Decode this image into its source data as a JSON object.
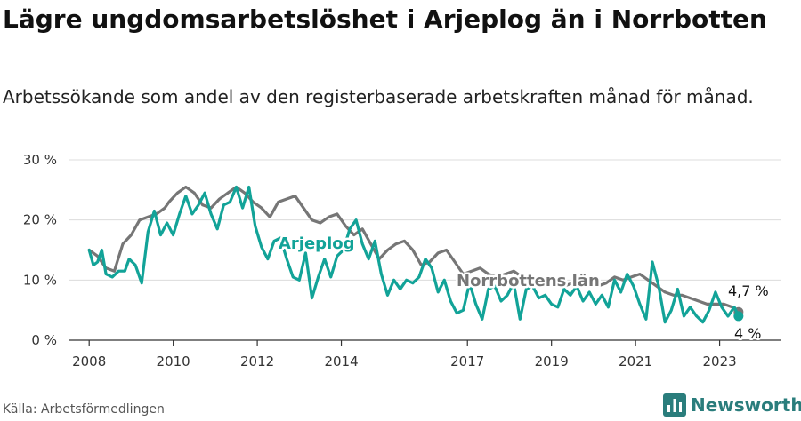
{
  "title": "Lägre ungdomsarbetslöshet i Arjeplog än i Norrbotten",
  "subtitle": "Arbetssökande som andel av den registerbaserade arbetskraften månad för månad.",
  "source": "Källa: Arbetsförmedlingen",
  "brand": "Newsworthy",
  "colors": {
    "arjeplog": "#12a398",
    "norrbotten": "#767676",
    "grid": "#dcdcdc",
    "axis": "#333333",
    "brand": "#2a7d7c"
  },
  "chart_data": {
    "type": "line",
    "ylim": [
      0,
      30
    ],
    "xlim": [
      2007.7,
      2024.0
    ],
    "y_ticks": [
      {
        "value": 0,
        "label": "0 %"
      },
      {
        "value": 10,
        "label": "10 %"
      },
      {
        "value": 20,
        "label": "20 %"
      },
      {
        "value": 30,
        "label": "30 %"
      }
    ],
    "x_ticks": [
      {
        "value": 2008,
        "label": "2008"
      },
      {
        "value": 2010,
        "label": "2010"
      },
      {
        "value": 2012,
        "label": "2012"
      },
      {
        "value": 2014,
        "label": "2014"
      },
      {
        "value": 2017,
        "label": "2017"
      },
      {
        "value": 2019,
        "label": "2019"
      },
      {
        "value": 2021,
        "label": "2021"
      },
      {
        "value": 2023,
        "label": "2023"
      }
    ],
    "series": [
      {
        "name": "Norrbottens län",
        "key": "norrbotten",
        "end_label": "4,7 %",
        "points": [
          [
            2008.0,
            15.0
          ],
          [
            2008.2,
            14.0
          ],
          [
            2008.4,
            12.0
          ],
          [
            2008.6,
            11.5
          ],
          [
            2008.8,
            16.0
          ],
          [
            2009.0,
            17.5
          ],
          [
            2009.2,
            20.0
          ],
          [
            2009.4,
            20.5
          ],
          [
            2009.6,
            21.0
          ],
          [
            2009.8,
            22.0
          ],
          [
            2009.9,
            23.0
          ],
          [
            2010.1,
            24.5
          ],
          [
            2010.3,
            25.5
          ],
          [
            2010.5,
            24.5
          ],
          [
            2010.7,
            22.5
          ],
          [
            2010.9,
            22.0
          ],
          [
            2011.1,
            23.5
          ],
          [
            2011.3,
            24.5
          ],
          [
            2011.5,
            25.5
          ],
          [
            2011.7,
            24.5
          ],
          [
            2011.9,
            23.0
          ],
          [
            2012.1,
            22.0
          ],
          [
            2012.3,
            20.5
          ],
          [
            2012.5,
            23.0
          ],
          [
            2012.7,
            23.5
          ],
          [
            2012.9,
            24.0
          ],
          [
            2013.1,
            22.0
          ],
          [
            2013.3,
            20.0
          ],
          [
            2013.5,
            19.5
          ],
          [
            2013.7,
            20.5
          ],
          [
            2013.9,
            21.0
          ],
          [
            2014.1,
            19.0
          ],
          [
            2014.3,
            17.5
          ],
          [
            2014.5,
            18.5
          ],
          [
            2014.7,
            16.0
          ],
          [
            2014.9,
            13.5
          ],
          [
            2015.1,
            15.0
          ],
          [
            2015.3,
            16.0
          ],
          [
            2015.5,
            16.5
          ],
          [
            2015.7,
            15.0
          ],
          [
            2015.9,
            12.5
          ],
          [
            2016.1,
            13.0
          ],
          [
            2016.3,
            14.5
          ],
          [
            2016.5,
            15.0
          ],
          [
            2016.7,
            13.0
          ],
          [
            2016.9,
            11.0
          ],
          [
            2017.1,
            11.5
          ],
          [
            2017.3,
            12.0
          ],
          [
            2017.5,
            11.0
          ],
          [
            2017.7,
            10.5
          ],
          [
            2017.9,
            11.0
          ],
          [
            2018.1,
            11.5
          ],
          [
            2018.3,
            10.5
          ],
          [
            2018.5,
            10.0
          ],
          [
            2018.7,
            10.5
          ],
          [
            2018.9,
            10.0
          ],
          [
            2019.1,
            9.5
          ],
          [
            2019.3,
            9.0
          ],
          [
            2019.5,
            9.5
          ],
          [
            2019.7,
            10.0
          ],
          [
            2019.9,
            9.5
          ],
          [
            2020.1,
            9.0
          ],
          [
            2020.3,
            9.5
          ],
          [
            2020.5,
            10.5
          ],
          [
            2020.7,
            10.0
          ],
          [
            2020.9,
            10.5
          ],
          [
            2021.1,
            11.0
          ],
          [
            2021.3,
            10.0
          ],
          [
            2021.5,
            9.0
          ],
          [
            2021.7,
            8.0
          ],
          [
            2021.9,
            7.5
          ],
          [
            2022.1,
            7.5
          ],
          [
            2022.3,
            7.0
          ],
          [
            2022.5,
            6.5
          ],
          [
            2022.7,
            6.0
          ],
          [
            2022.9,
            6.0
          ],
          [
            2023.1,
            6.0
          ],
          [
            2023.3,
            5.5
          ],
          [
            2023.45,
            4.7
          ]
        ]
      },
      {
        "name": "Arjeplog",
        "key": "arjeplog",
        "end_label": "4 %",
        "points": [
          [
            2008.0,
            15.0
          ],
          [
            2008.1,
            12.5
          ],
          [
            2008.2,
            13.0
          ],
          [
            2008.3,
            15.0
          ],
          [
            2008.4,
            11.0
          ],
          [
            2008.55,
            10.5
          ],
          [
            2008.7,
            11.5
          ],
          [
            2008.85,
            11.5
          ],
          [
            2008.95,
            13.5
          ],
          [
            2009.1,
            12.5
          ],
          [
            2009.25,
            9.5
          ],
          [
            2009.4,
            18.0
          ],
          [
            2009.55,
            21.5
          ],
          [
            2009.7,
            17.5
          ],
          [
            2009.85,
            19.5
          ],
          [
            2010.0,
            17.5
          ],
          [
            2010.15,
            21.0
          ],
          [
            2010.3,
            24.0
          ],
          [
            2010.45,
            21.0
          ],
          [
            2010.6,
            22.5
          ],
          [
            2010.75,
            24.5
          ],
          [
            2010.9,
            21.0
          ],
          [
            2011.05,
            18.5
          ],
          [
            2011.2,
            22.5
          ],
          [
            2011.35,
            23.0
          ],
          [
            2011.5,
            25.5
          ],
          [
            2011.65,
            22.0
          ],
          [
            2011.8,
            25.5
          ],
          [
            2011.95,
            19.0
          ],
          [
            2012.1,
            15.5
          ],
          [
            2012.25,
            13.5
          ],
          [
            2012.4,
            16.5
          ],
          [
            2012.55,
            17.0
          ],
          [
            2012.7,
            13.5
          ],
          [
            2012.85,
            10.5
          ],
          [
            2013.0,
            10.0
          ],
          [
            2013.15,
            14.5
          ],
          [
            2013.3,
            7.0
          ],
          [
            2013.45,
            10.5
          ],
          [
            2013.6,
            13.5
          ],
          [
            2013.75,
            10.5
          ],
          [
            2013.9,
            14.0
          ],
          [
            2014.05,
            15.0
          ],
          [
            2014.2,
            18.5
          ],
          [
            2014.35,
            20.0
          ],
          [
            2014.5,
            16.0
          ],
          [
            2014.65,
            13.5
          ],
          [
            2014.8,
            16.5
          ],
          [
            2014.95,
            11.0
          ],
          [
            2015.1,
            7.5
          ],
          [
            2015.25,
            10.0
          ],
          [
            2015.4,
            8.5
          ],
          [
            2015.55,
            10.0
          ],
          [
            2015.7,
            9.5
          ],
          [
            2015.85,
            10.5
          ],
          [
            2016.0,
            13.5
          ],
          [
            2016.15,
            12.0
          ],
          [
            2016.3,
            8.0
          ],
          [
            2016.45,
            10.0
          ],
          [
            2016.6,
            6.5
          ],
          [
            2016.75,
            4.5
          ],
          [
            2016.9,
            5.0
          ],
          [
            2017.05,
            9.5
          ],
          [
            2017.2,
            6.0
          ],
          [
            2017.35,
            3.5
          ],
          [
            2017.5,
            8.5
          ],
          [
            2017.65,
            9.0
          ],
          [
            2017.8,
            6.5
          ],
          [
            2017.95,
            7.5
          ],
          [
            2018.1,
            9.5
          ],
          [
            2018.25,
            3.5
          ],
          [
            2018.4,
            8.5
          ],
          [
            2018.55,
            9.0
          ],
          [
            2018.7,
            7.0
          ],
          [
            2018.85,
            7.5
          ],
          [
            2019.0,
            6.0
          ],
          [
            2019.15,
            5.5
          ],
          [
            2019.3,
            8.5
          ],
          [
            2019.45,
            7.5
          ],
          [
            2019.6,
            9.0
          ],
          [
            2019.75,
            6.5
          ],
          [
            2019.9,
            8.0
          ],
          [
            2020.05,
            6.0
          ],
          [
            2020.2,
            7.5
          ],
          [
            2020.35,
            5.5
          ],
          [
            2020.5,
            10.0
          ],
          [
            2020.65,
            8.0
          ],
          [
            2020.8,
            11.0
          ],
          [
            2020.95,
            9.0
          ],
          [
            2021.1,
            6.0
          ],
          [
            2021.25,
            3.5
          ],
          [
            2021.4,
            13.0
          ],
          [
            2021.55,
            9.0
          ],
          [
            2021.7,
            3.0
          ],
          [
            2021.85,
            5.0
          ],
          [
            2022.0,
            8.5
          ],
          [
            2022.15,
            4.0
          ],
          [
            2022.3,
            5.5
          ],
          [
            2022.45,
            4.0
          ],
          [
            2022.6,
            3.0
          ],
          [
            2022.75,
            5.0
          ],
          [
            2022.9,
            8.0
          ],
          [
            2023.05,
            5.5
          ],
          [
            2023.2,
            4.0
          ],
          [
            2023.35,
            5.5
          ],
          [
            2023.45,
            4.0
          ]
        ]
      }
    ]
  }
}
